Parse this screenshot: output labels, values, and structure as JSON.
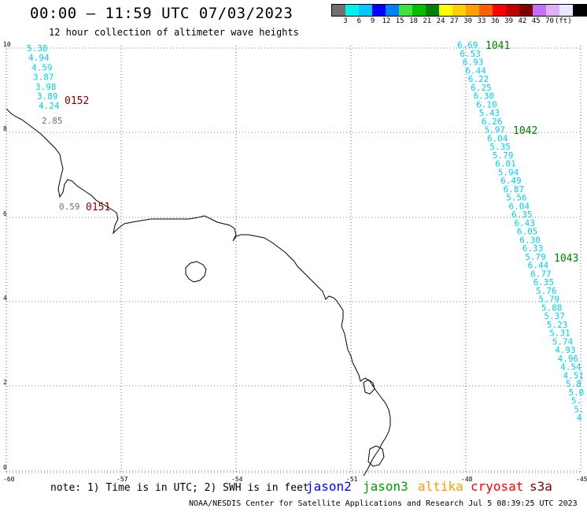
{
  "header": {
    "title": "00:00 – 11:59 UTC 07/03/2023",
    "subtitle": "12 hour collection of altimeter wave heights"
  },
  "legend": {
    "colors": [
      "#707070",
      "#00f0f0",
      "#00c8ff",
      "#0000ff",
      "#0080ff",
      "#40e040",
      "#00c000",
      "#008000",
      "#ffff00",
      "#ffd000",
      "#ffa000",
      "#ff6000",
      "#ff0000",
      "#c00000",
      "#800000",
      "#c070ff",
      "#e0b0ff",
      "#e8e8ff",
      "#000000"
    ],
    "ticks": [
      "3",
      "6",
      "9",
      "12",
      "15",
      "18",
      "21",
      "24",
      "27",
      "30",
      "33",
      "36",
      "39",
      "42",
      "45",
      "70",
      "(ft)"
    ]
  },
  "axes": {
    "lon_ticks": [
      "-60",
      "-57",
      "-54",
      "-51",
      "-48",
      "-45"
    ],
    "lat_ticks": [
      "0",
      "2",
      "4",
      "6",
      "8",
      "10"
    ]
  },
  "tracks": {
    "left_cyan": [
      "5.38",
      "4.94",
      "4.59",
      "3.87",
      "3.98",
      "3.89",
      "4.24"
    ],
    "left_gray_upper": "2.85",
    "left_gray_lower": "0.59",
    "right_cyan": [
      "6.69",
      "6.53",
      "6.93",
      "6.44",
      "6.22",
      "6.25",
      "6.30",
      "6.10",
      "5.43",
      "6.26",
      "5.97",
      "6.04",
      "5.35",
      "5.79",
      "6.01",
      "5.94",
      "6.49",
      "6.87",
      "5.56",
      "6.04",
      "6.35",
      "6.43",
      "6.05",
      "6.30",
      "6.33",
      "5.79",
      "6.44",
      "6.77",
      "6.35",
      "5.76",
      "5.79",
      "5.88",
      "5.37",
      "5.23",
      "5.31",
      "5.74",
      "4.93",
      "4.96",
      "4.54",
      "4.51",
      "5.8",
      "5.0",
      "5.",
      "5.",
      "4"
    ]
  },
  "track_labels": {
    "t0152": "0152",
    "t0151": "0151",
    "t1041": "1041",
    "t1042": "1042",
    "t1043": "1043"
  },
  "colors": {
    "cyan": "#00d0f0",
    "gray": "#707070",
    "darkred": "#800000",
    "green": "#008000"
  },
  "footer": {
    "note": "note: 1) Time is in UTC; 2) SWH is in feet",
    "satellites": [
      {
        "name": "jason2",
        "color": "#0000ff"
      },
      {
        "name": "jason3",
        "color": "#00a000"
      },
      {
        "name": "altika",
        "color": "#ff9900"
      },
      {
        "name": "cryosat",
        "color": "#ff0000"
      },
      {
        "name": "s3a",
        "color": "#800000"
      }
    ],
    "credit": "NOAA/NESDIS Center for Satellite Applications and Research   Jul  5 08:39:25 UTC 2023"
  }
}
